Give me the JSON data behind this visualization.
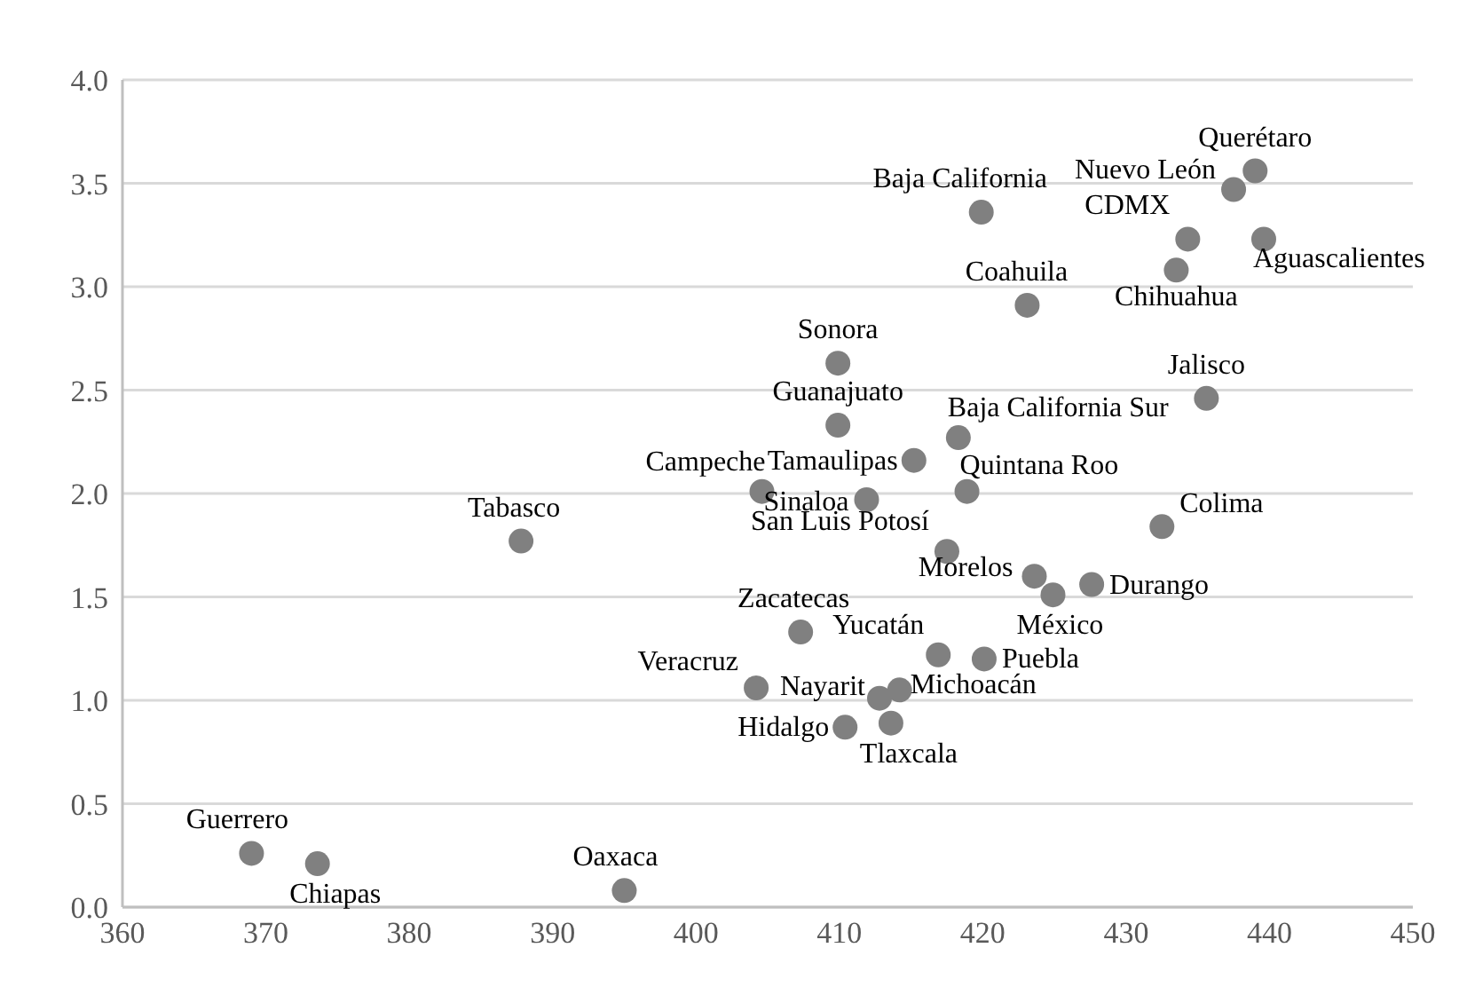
{
  "chart_data": {
    "type": "scatter",
    "xlim": [
      360,
      450
    ],
    "xticks": [
      {
        "value": 360,
        "label": "360"
      },
      {
        "value": 370,
        "label": "370"
      },
      {
        "value": 380,
        "label": "380"
      },
      {
        "value": 390,
        "label": "390"
      },
      {
        "value": 400,
        "label": "400"
      },
      {
        "value": 410,
        "label": "410"
      },
      {
        "value": 420,
        "label": "420"
      },
      {
        "value": 430,
        "label": "430"
      },
      {
        "value": 440,
        "label": "440"
      },
      {
        "value": 450,
        "label": "450"
      }
    ],
    "ylim": [
      0,
      4
    ],
    "yticks": [
      {
        "value": 0,
        "label": "0.0"
      },
      {
        "value": 0.5,
        "label": "0.5"
      },
      {
        "value": 1,
        "label": "1.0"
      },
      {
        "value": 1.5,
        "label": "1.5"
      },
      {
        "value": 2,
        "label": "2.0"
      },
      {
        "value": 2.5,
        "label": "2.5"
      },
      {
        "value": 3,
        "label": "3.0"
      },
      {
        "value": 3.5,
        "label": "3.5"
      },
      {
        "value": 4,
        "label": "4.0"
      }
    ],
    "grid": "y",
    "marker": "circle",
    "legend": false,
    "series": [
      {
        "name": "Guerrero",
        "color": "#808080",
        "x": [
          369.0
        ],
        "values": [
          0.26
        ]
      },
      {
        "name": "Chiapas",
        "color": "#808080",
        "x": [
          373.6
        ],
        "values": [
          0.21
        ]
      },
      {
        "name": "Oaxaca",
        "color": "#808080",
        "x": [
          395.0
        ],
        "values": [
          0.08
        ]
      },
      {
        "name": "Tabasco",
        "color": "#808080",
        "x": [
          387.8
        ],
        "values": [
          1.77
        ]
      },
      {
        "name": "Campeche",
        "color": "#808080",
        "x": [
          404.6
        ],
        "values": [
          2.01
        ]
      },
      {
        "name": "Sonora",
        "color": "#808080",
        "x": [
          409.9
        ],
        "values": [
          2.63
        ]
      },
      {
        "name": "Guanajuato",
        "color": "#808080",
        "x": [
          409.9
        ],
        "values": [
          2.33
        ]
      },
      {
        "name": "Sinaloa",
        "color": "#808080",
        "x": [
          411.9
        ],
        "values": [
          1.97
        ]
      },
      {
        "name": "Tamaulipas",
        "color": "#808080",
        "x": [
          415.2
        ],
        "values": [
          2.16
        ]
      },
      {
        "name": "Baja California Sur",
        "color": "#808080",
        "x": [
          418.3
        ],
        "values": [
          2.27
        ]
      },
      {
        "name": "Quintana Roo",
        "color": "#808080",
        "x": [
          418.9
        ],
        "values": [
          2.01
        ]
      },
      {
        "name": "Baja California",
        "color": "#808080",
        "x": [
          419.9
        ],
        "values": [
          3.36
        ]
      },
      {
        "name": "Coahuila",
        "color": "#808080",
        "x": [
          423.1
        ],
        "values": [
          2.91
        ]
      },
      {
        "name": "San Luis Potosí",
        "color": "#808080",
        "x": [
          417.5
        ],
        "values": [
          1.72
        ]
      },
      {
        "name": "Colima",
        "color": "#808080",
        "x": [
          432.5
        ],
        "values": [
          1.84
        ]
      },
      {
        "name": "Jalisco",
        "color": "#808080",
        "x": [
          435.6
        ],
        "values": [
          2.46
        ]
      },
      {
        "name": "Querétaro",
        "color": "#808080",
        "x": [
          439.0
        ],
        "values": [
          3.56
        ]
      },
      {
        "name": "Nuevo León",
        "color": "#808080",
        "x": [
          437.5
        ],
        "values": [
          3.47
        ]
      },
      {
        "name": "CDMX",
        "color": "#808080",
        "x": [
          434.3
        ],
        "values": [
          3.23
        ]
      },
      {
        "name": "Aguascalientes",
        "color": "#808080",
        "x": [
          439.6
        ],
        "values": [
          3.23
        ]
      },
      {
        "name": "Chihuahua",
        "color": "#808080",
        "x": [
          433.5
        ],
        "values": [
          3.08
        ]
      },
      {
        "name": "Morelos",
        "color": "#808080",
        "x": [
          423.6
        ],
        "values": [
          1.6
        ]
      },
      {
        "name": "México",
        "color": "#808080",
        "x": [
          424.9
        ],
        "values": [
          1.51
        ]
      },
      {
        "name": "Durango",
        "color": "#808080",
        "x": [
          427.6
        ],
        "values": [
          1.56
        ]
      },
      {
        "name": "Zacatecas",
        "color": "#808080",
        "x": [
          407.3
        ],
        "values": [
          1.33
        ]
      },
      {
        "name": "Yucatán",
        "color": "#808080",
        "x": [
          416.9
        ],
        "values": [
          1.22
        ]
      },
      {
        "name": "Puebla",
        "color": "#808080",
        "x": [
          420.1
        ],
        "values": [
          1.2
        ]
      },
      {
        "name": "Veracruz",
        "color": "#808080",
        "x": [
          404.2
        ],
        "values": [
          1.06
        ]
      },
      {
        "name": "Nayarit",
        "color": "#808080",
        "x": [
          412.8
        ],
        "values": [
          1.01
        ]
      },
      {
        "name": "Michoacán",
        "color": "#808080",
        "x": [
          414.2
        ],
        "values": [
          1.05
        ]
      },
      {
        "name": "Hidalgo",
        "color": "#808080",
        "x": [
          410.4
        ],
        "values": [
          0.87
        ]
      },
      {
        "name": "Tlaxcala",
        "color": "#808080",
        "x": [
          413.6
        ],
        "values": [
          0.89
        ]
      }
    ]
  }
}
